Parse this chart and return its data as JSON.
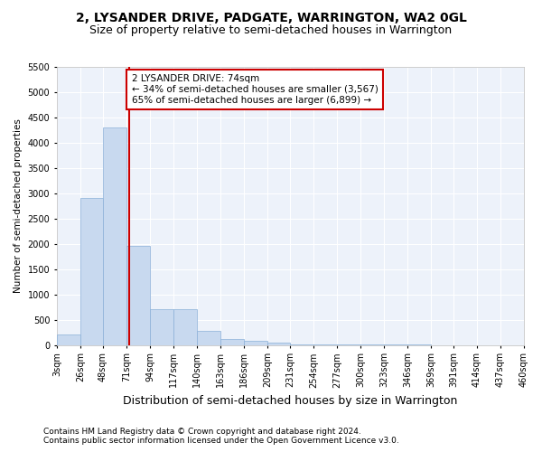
{
  "title": "2, LYSANDER DRIVE, PADGATE, WARRINGTON, WA2 0GL",
  "subtitle": "Size of property relative to semi-detached houses in Warrington",
  "xlabel": "Distribution of semi-detached houses by size in Warrington",
  "ylabel": "Number of semi-detached properties",
  "footer1": "Contains HM Land Registry data © Crown copyright and database right 2024.",
  "footer2": "Contains public sector information licensed under the Open Government Licence v3.0.",
  "bar_edges": [
    3,
    26,
    48,
    71,
    94,
    117,
    140,
    163,
    186,
    209,
    231,
    254,
    277,
    300,
    323,
    346,
    369,
    391,
    414,
    437,
    460
  ],
  "bar_values": [
    200,
    2900,
    4300,
    1950,
    700,
    700,
    270,
    120,
    80,
    50,
    15,
    10,
    5,
    2,
    1,
    1,
    0,
    0,
    0,
    0
  ],
  "bar_color": "#c8d9ef",
  "bar_edge_color": "#8ab0d8",
  "property_size": 74,
  "property_label": "2 LYSANDER DRIVE: 74sqm",
  "pct_smaller": 34,
  "pct_smaller_n": "3,567",
  "pct_larger": 65,
  "pct_larger_n": "6,899",
  "vline_color": "#cc0000",
  "annotation_box_edge": "#cc0000",
  "ylim": [
    0,
    5500
  ],
  "yticks": [
    0,
    500,
    1000,
    1500,
    2000,
    2500,
    3000,
    3500,
    4000,
    4500,
    5000,
    5500
  ],
  "bg_color": "#edf2fa",
  "grid_color": "#ffffff",
  "title_fontsize": 10,
  "subtitle_fontsize": 9,
  "ylabel_fontsize": 7.5,
  "xlabel_fontsize": 9,
  "tick_fontsize": 7,
  "annot_fontsize": 7.5,
  "footer_fontsize": 6.5
}
